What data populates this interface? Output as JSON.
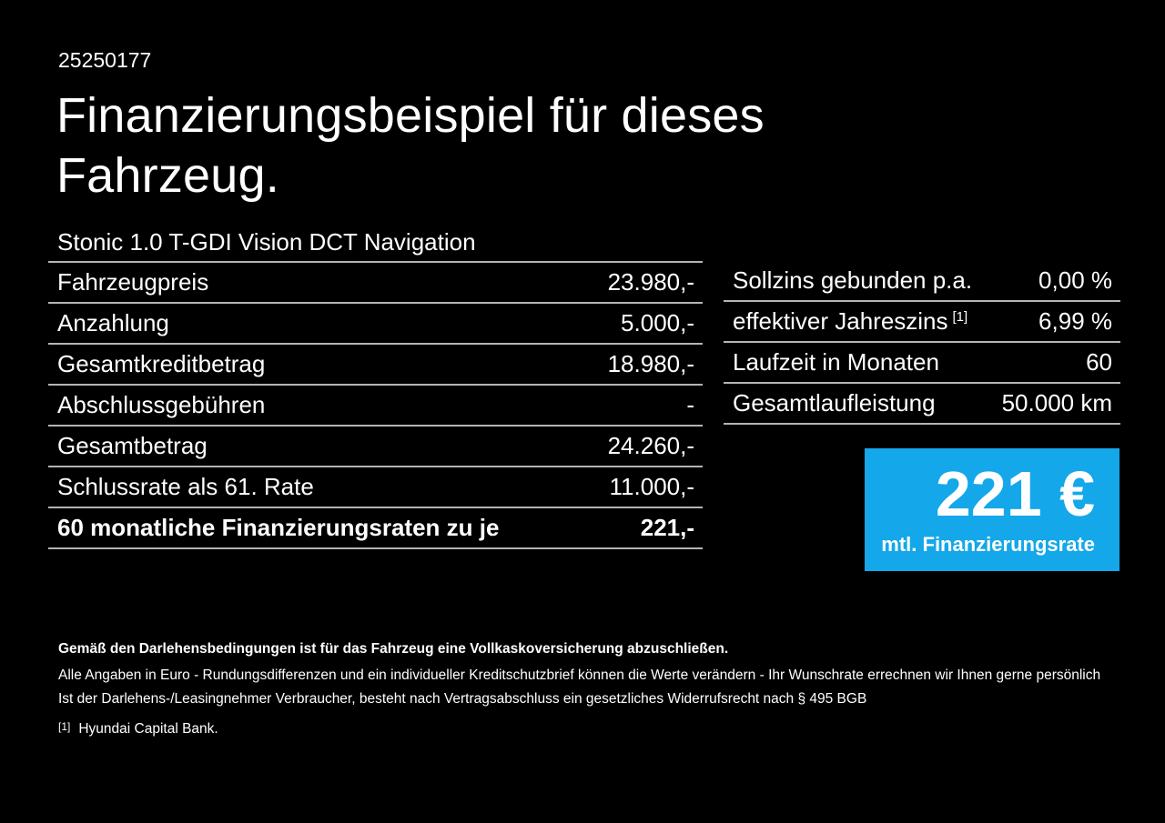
{
  "page": {
    "background": "#000000",
    "text_color": "#ffffff",
    "accent_blue": "#14a7ea",
    "divider_color": "#b4b4b4"
  },
  "header": {
    "id": "25250177",
    "title_line1": "Finanzierungsbeispiel für dieses",
    "title_line2": "Fahrzeug."
  },
  "finance_table": {
    "model": "Stonic 1.0 T-GDI Vision DCT Navigation",
    "rows": [
      {
        "label": "Fahrzeugpreis",
        "value": "23.980,-"
      },
      {
        "label": "Anzahlung",
        "value": "5.000,-"
      },
      {
        "label": "Gesamtkreditbetrag",
        "value": "18.980,-"
      },
      {
        "label": "Abschlussgebühren",
        "value": "-"
      },
      {
        "label": "Gesamtbetrag",
        "value": "24.260,-"
      },
      {
        "label": "Schlussrate als 61. Rate",
        "value": "11.000,-"
      },
      {
        "label": "60 monatliche Finanzierungsraten zu je",
        "value": "221,-"
      }
    ]
  },
  "conditions_table": {
    "rows": [
      {
        "label": "Sollzins gebunden p.a.",
        "sup": "",
        "value": "0,00 %"
      },
      {
        "label": "effektiver Jahreszins",
        "sup": "[1]",
        "value": "6,99 %"
      },
      {
        "label": "Laufzeit in Monaten",
        "sup": "",
        "value": "60"
      },
      {
        "label": "Gesamtlaufleistung",
        "sup": "",
        "value": "50.000 km"
      }
    ]
  },
  "rate_box": {
    "amount": "221 €",
    "caption": "mtl. Finanzierungsrate"
  },
  "footer": {
    "insurance_note": "Gemäß den Darlehensbedingungen ist für das Fahrzeug eine Vollkaskoversicherung abzuschließen.",
    "note_line1": "Alle Angaben in Euro - Rundungsdifferenzen und ein individueller Kreditschutzbrief können die Werte verändern - Ihr Wunschrate errechnen wir Ihnen gerne persönlich",
    "note_line2": "Ist der Darlehens-/Leasingnehmer Verbraucher, besteht nach Vertragsabschluss ein gesetzliches Widerrufsrecht nach § 495 BGB",
    "footnote_marker": "[1]",
    "footnote_text": "Hyundai Capital Bank."
  }
}
